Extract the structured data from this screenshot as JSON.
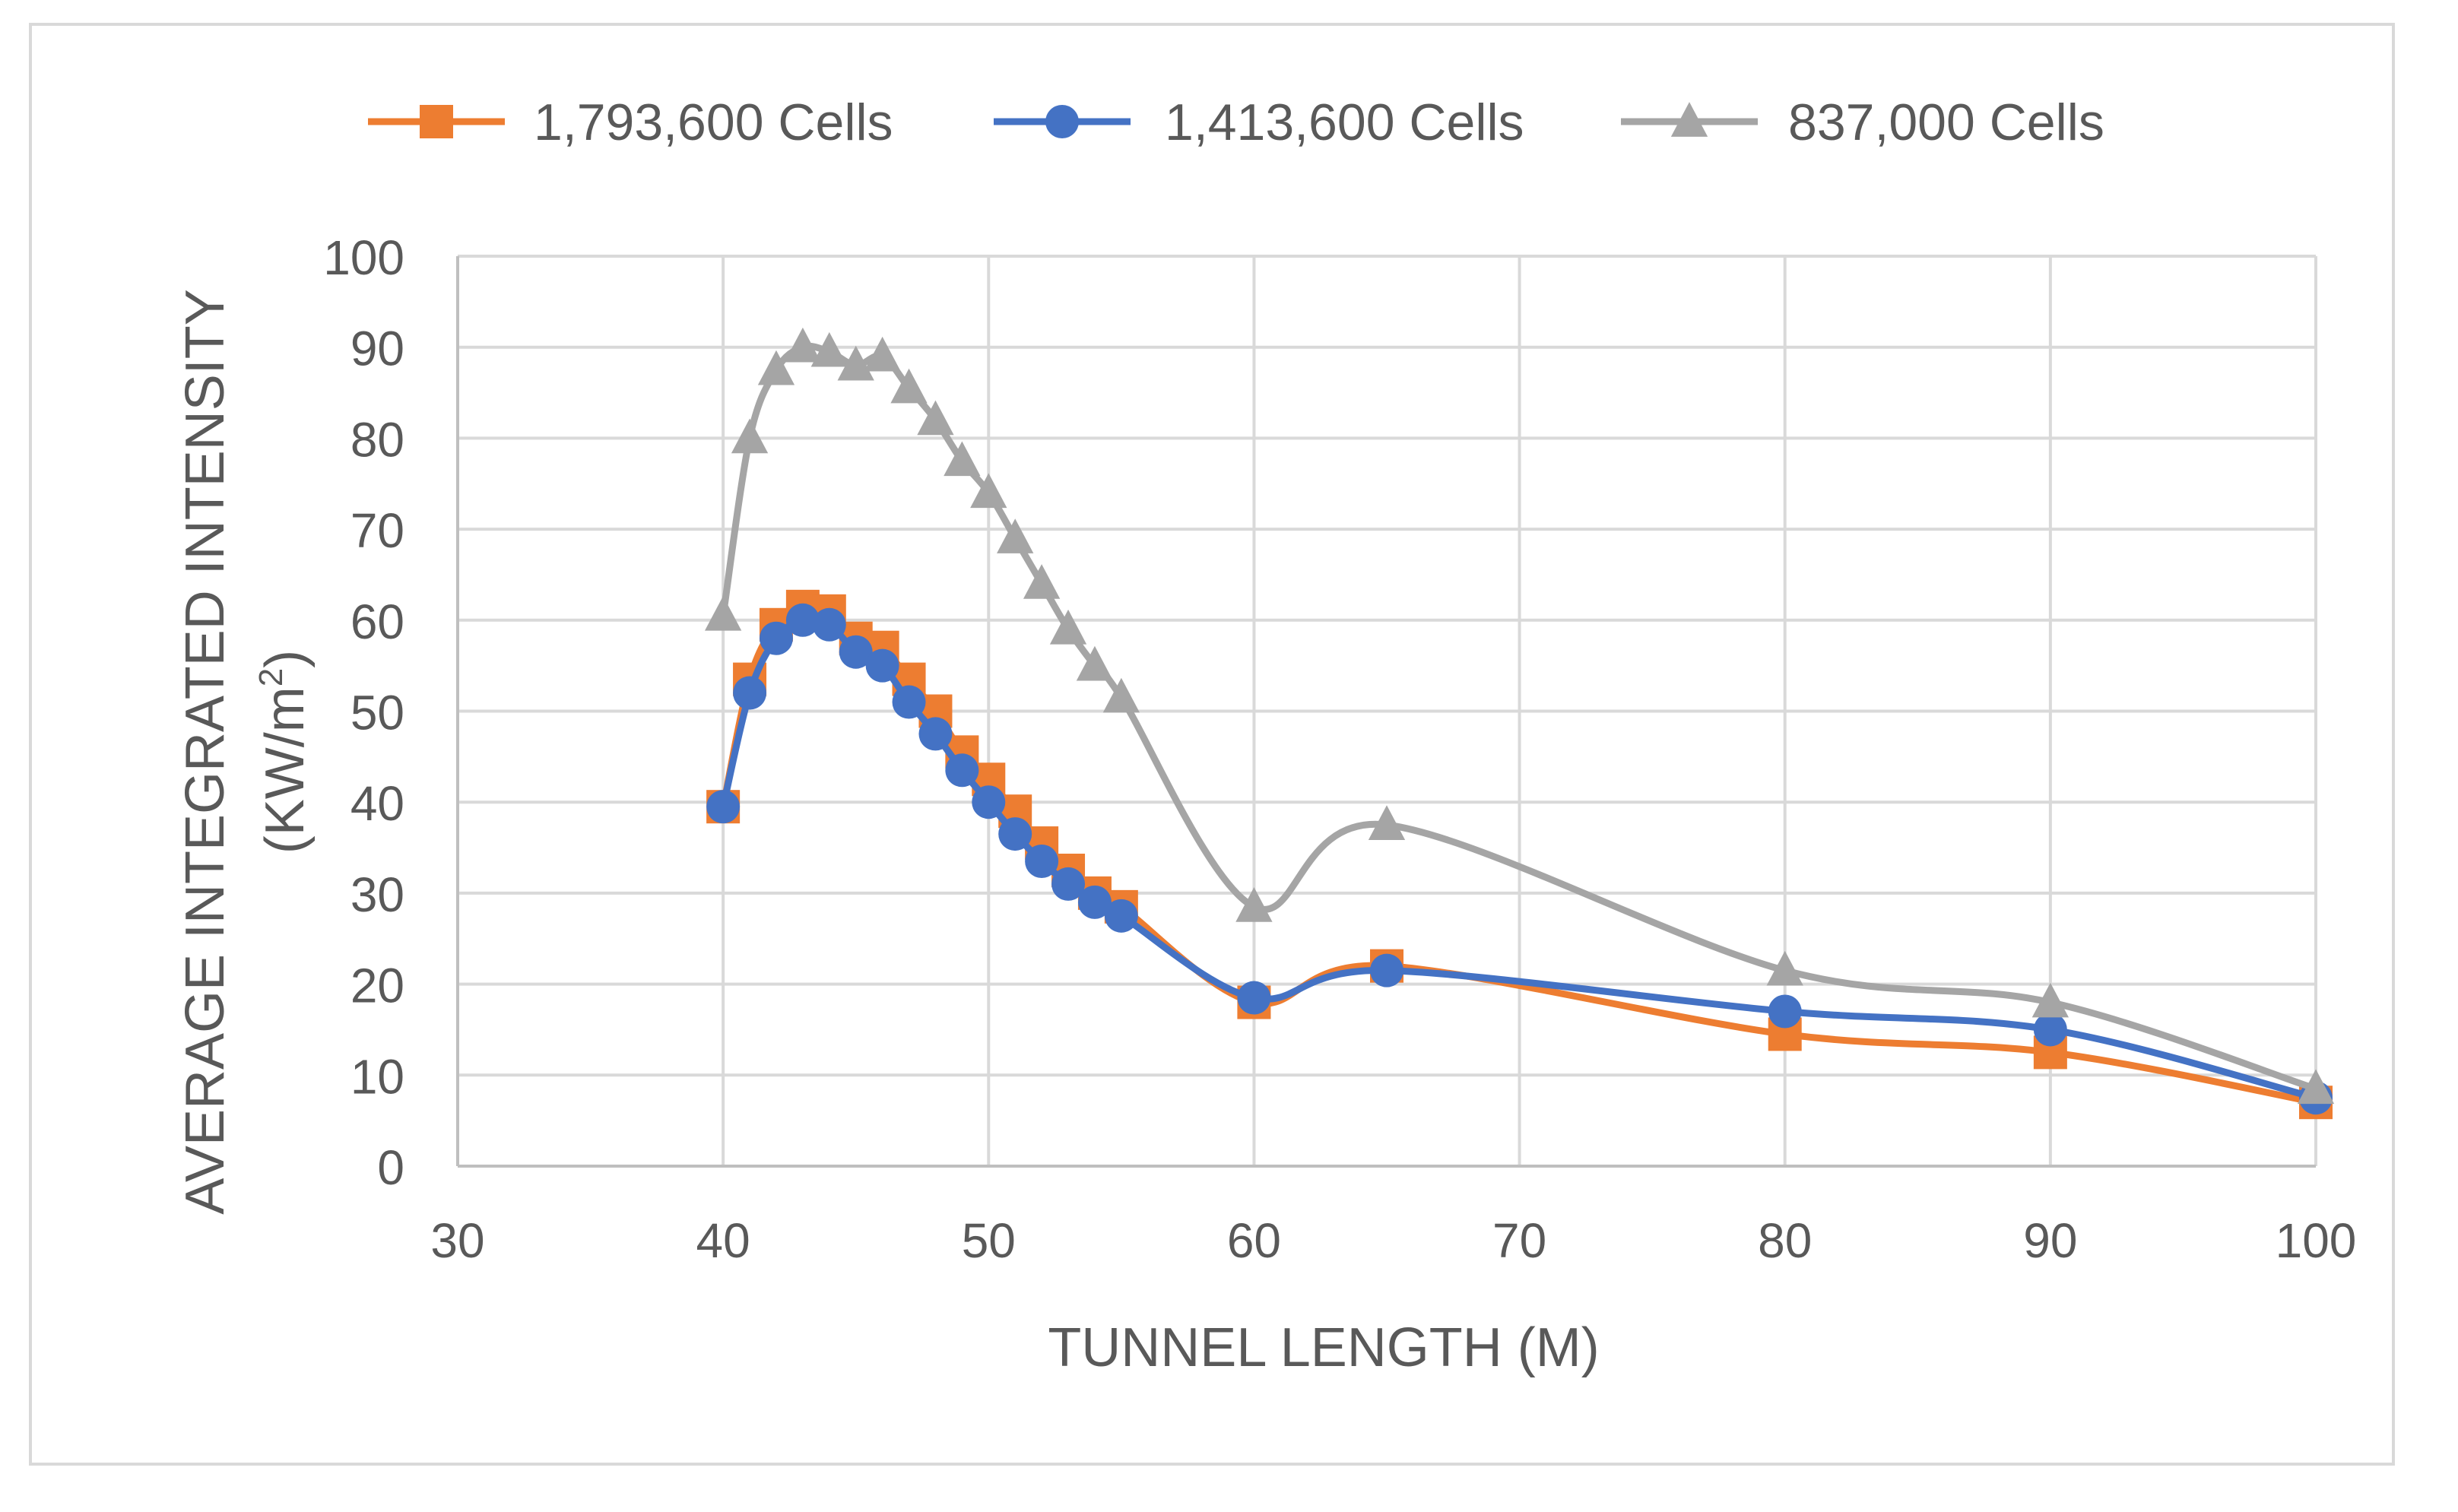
{
  "chart_data": {
    "type": "line",
    "title": "",
    "xlabel": "TUNNEL LENGTH (M)",
    "ylabel_line1": "AVERAGE INTEGRATED INTENSITY",
    "ylabel_line2_prefix": "(KW/m",
    "ylabel_line2_sup": "2",
    "ylabel_line2_suffix": ")",
    "xlim": [
      30,
      100
    ],
    "ylim": [
      0,
      100
    ],
    "x_ticks": [
      30,
      40,
      50,
      60,
      70,
      80,
      90,
      100
    ],
    "y_ticks": [
      0,
      10,
      20,
      30,
      40,
      50,
      60,
      70,
      80,
      90,
      100
    ],
    "grid": true,
    "legend_position": "top-center",
    "x": [
      40,
      41,
      42,
      43,
      44,
      45,
      46,
      47,
      48,
      49,
      50,
      51,
      52,
      53,
      54,
      55,
      60,
      65,
      80,
      90,
      100
    ],
    "series": [
      {
        "name": "1,793,600 Cells",
        "color": "#ED7D31",
        "marker": "square",
        "values": [
          39.5,
          53.5,
          59.5,
          61.5,
          61,
          58,
          57,
          53.5,
          50,
          45.5,
          42.5,
          39,
          35.5,
          32.5,
          30,
          28.5,
          18,
          22,
          14.5,
          12.5,
          7
        ]
      },
      {
        "name": "1,413,600 Cells",
        "color": "#4472C4",
        "marker": "circle",
        "values": [
          39.5,
          52,
          58,
          60,
          59.5,
          56.5,
          55,
          51,
          47.5,
          43.5,
          40,
          36.5,
          33.5,
          31,
          29,
          27.5,
          18.5,
          21.5,
          17,
          15,
          7.5
        ]
      },
      {
        "name": "837,000 Cells",
        "color": "#A5A5A5",
        "marker": "triangle",
        "values": [
          60.5,
          80,
          87.5,
          90,
          89.5,
          88,
          89,
          85.5,
          82,
          77.5,
          74,
          69,
          64,
          59,
          55,
          51.5,
          28.5,
          37.5,
          21.5,
          18,
          8.5
        ]
      }
    ]
  }
}
